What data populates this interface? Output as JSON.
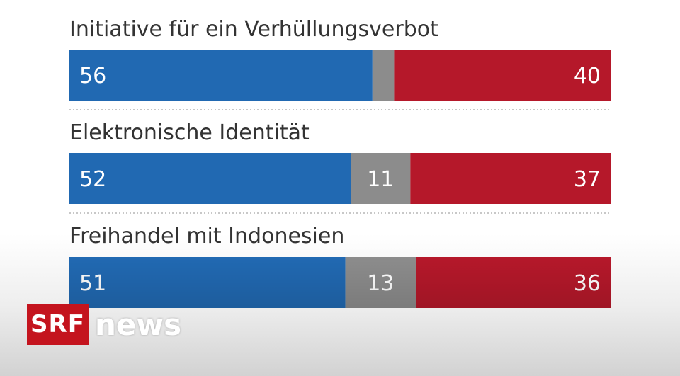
{
  "chart_data": {
    "type": "bar",
    "orientation": "horizontal-stacked-100",
    "categories": [
      "Initiative für ein Verhüllungsverbot",
      "Elektronische Identität",
      "Freihandel mit Indonesien"
    ],
    "series": [
      {
        "values": [
          56,
          52,
          51
        ],
        "labels": [
          "56",
          "52",
          "51"
        ],
        "color": "#2169b2"
      },
      {
        "values": [
          4,
          11,
          13
        ],
        "labels": [
          "",
          "11",
          "13"
        ],
        "color": "#8c8c8c"
      },
      {
        "values": [
          40,
          37,
          36
        ],
        "labels": [
          "40",
          "37",
          "36"
        ],
        "color": "#b5182a"
      }
    ]
  },
  "logo": {
    "brand": "SRF",
    "product": "news"
  }
}
